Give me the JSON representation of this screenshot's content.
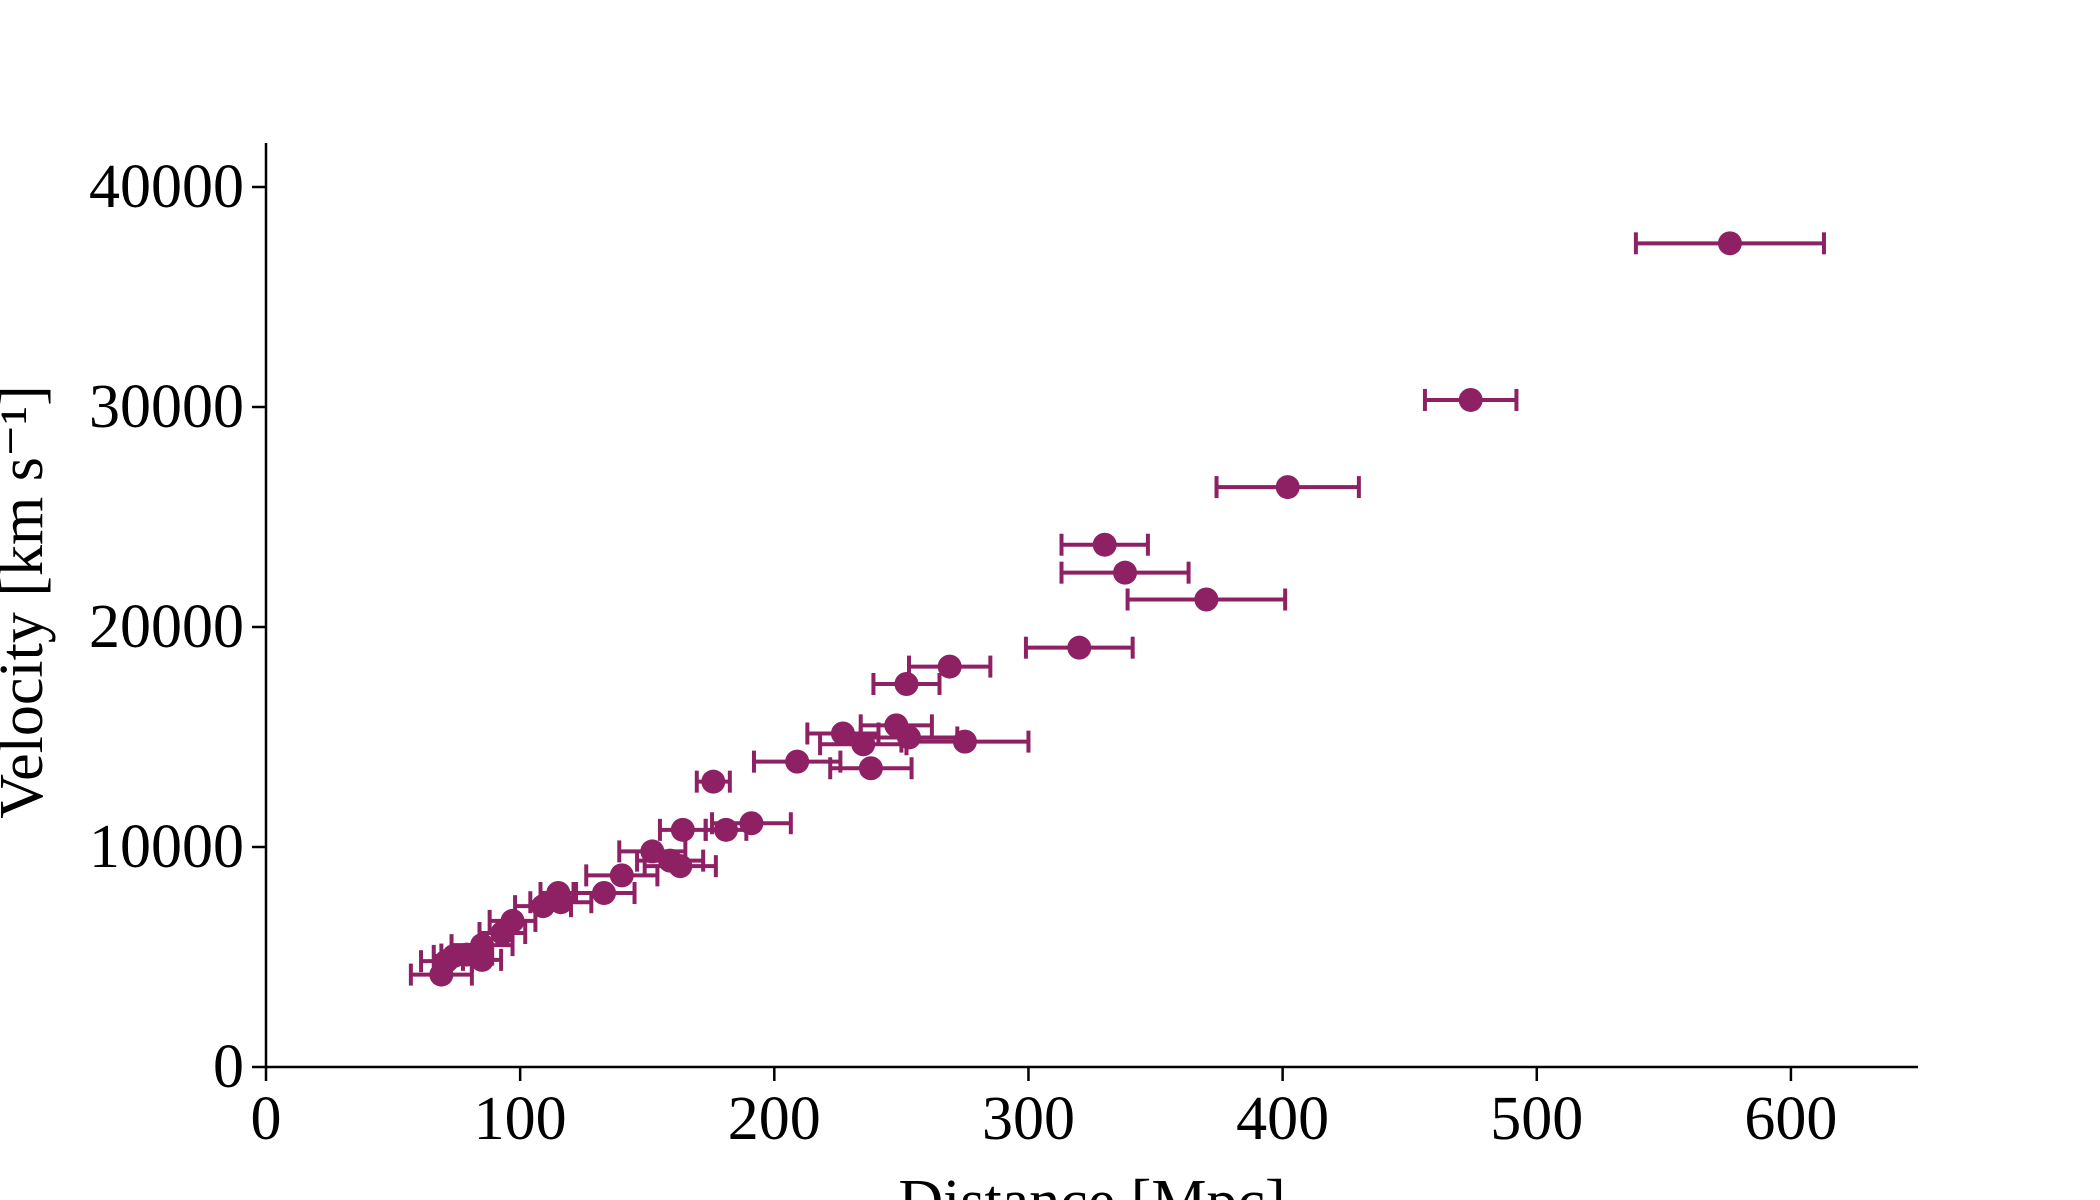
{
  "chart_data": {
    "type": "scatter",
    "x_label": "Distance [Mpc]",
    "y_label": "Velocity [km s⁻¹]",
    "xlim": [
      0,
      650
    ],
    "xticks": [
      0,
      100,
      200,
      300,
      400,
      500,
      600
    ],
    "ylim": [
      0,
      42000
    ],
    "yticks": [
      0,
      10000,
      20000,
      30000,
      40000
    ],
    "grid": false,
    "series": [
      {
        "color": "#8e2163",
        "x": [
          576,
          474,
          402,
          330,
          338,
          370,
          320,
          269,
          252,
          248,
          227,
          235,
          253,
          275,
          209,
          238,
          176,
          191,
          181,
          164,
          152,
          159,
          163,
          140,
          133,
          115,
          116,
          109,
          97,
          93,
          85,
          79,
          74,
          85,
          71,
          69
        ],
        "xerr": [
          37,
          18,
          28,
          17,
          25,
          31,
          21,
          16,
          13,
          14,
          14,
          17,
          19,
          25,
          17,
          16,
          6.5,
          15.5,
          8,
          9,
          13,
          13,
          14,
          14,
          12,
          7,
          12,
          11,
          9,
          9,
          12,
          10,
          8,
          7.5,
          10,
          12
        ],
        "values": [
          37440,
          30320,
          26360,
          23740,
          22470,
          21250,
          19060,
          18200,
          17410,
          15530,
          15160,
          14670,
          14980,
          14790,
          13880,
          13580,
          12970,
          11080,
          10780,
          10780,
          9800,
          9380,
          9130,
          8710,
          7910,
          7910,
          7490,
          7310,
          6640,
          6090,
          5540,
          5110,
          5050,
          4870,
          4810,
          4200
        ]
      }
    ]
  }
}
